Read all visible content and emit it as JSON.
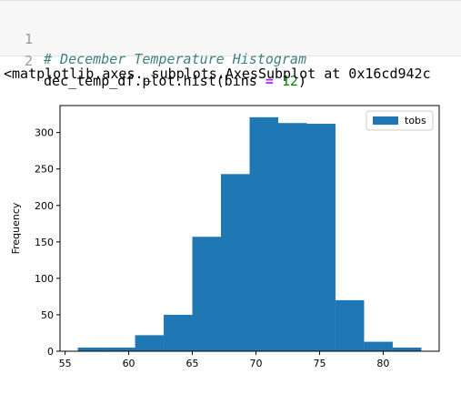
{
  "code_cell": {
    "lines": [
      {
        "number": "1",
        "comment": "# December Temperature Histogram"
      },
      {
        "number": "2",
        "call": "dec_temp_df.plot.hist(bins ",
        "operator": "=",
        "arg": " 12",
        "close": ")"
      }
    ]
  },
  "output": {
    "repr": "<matplotlib.axes._subplots.AxesSubplot at 0x16cd942c"
  },
  "chart_data": {
    "type": "bar",
    "subtype": "histogram",
    "bins": 12,
    "bin_edges": [
      56,
      58.25,
      60.5,
      62.75,
      65,
      67.25,
      69.5,
      71.75,
      74,
      76.25,
      78.5,
      80.75,
      83
    ],
    "values": [
      5,
      5,
      22,
      50,
      157,
      243,
      321,
      313,
      312,
      70,
      13,
      5
    ],
    "series": [
      {
        "name": "tobs",
        "values": [
          5,
          5,
          22,
          50,
          157,
          243,
          321,
          313,
          312,
          70,
          13,
          5
        ]
      }
    ],
    "xlabel": "",
    "ylabel": "Frequency",
    "xlim": [
      54.6,
      84.4
    ],
    "ylim": [
      0,
      337
    ],
    "xticks": [
      55,
      60,
      65,
      70,
      75,
      80
    ],
    "yticks": [
      0,
      50,
      100,
      150,
      200,
      250,
      300
    ],
    "legend_position": "top-right",
    "grid": false,
    "bar_color": "#1f77b4"
  }
}
